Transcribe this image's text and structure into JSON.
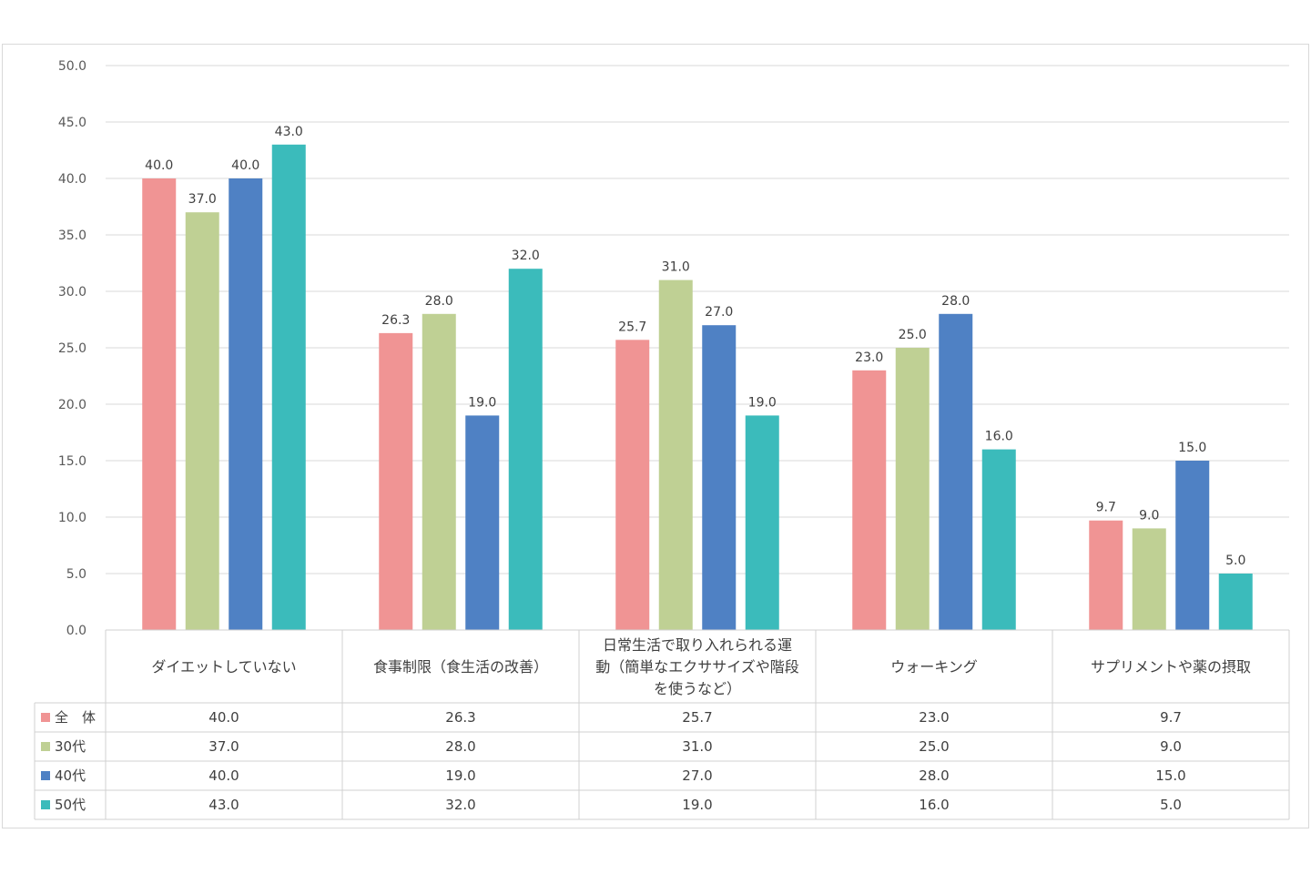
{
  "chart_data": {
    "type": "bar",
    "title": "",
    "xlabel": "",
    "ylabel": "",
    "ylim": [
      0,
      50
    ],
    "yticks": [
      "0.0",
      "5.0",
      "10.0",
      "15.0",
      "20.0",
      "25.0",
      "30.0",
      "35.0",
      "40.0",
      "45.0",
      "50.0"
    ],
    "grid": true,
    "legend": "data-table",
    "categories": [
      [
        "ダイエットしていない"
      ],
      [
        "食事制限（食生活の改善）"
      ],
      [
        "日常生活で取り入れられる運",
        "動（簡単なエクササイズや階段",
        "を使うなど）"
      ],
      [
        "ウォーキング"
      ],
      [
        "サプリメントや薬の摂取"
      ]
    ],
    "series": [
      {
        "name": "全　体",
        "color": "#f09494",
        "values": [
          40.0,
          26.3,
          25.7,
          23.0,
          9.7
        ],
        "labels": [
          "40.0",
          "26.3",
          "25.7",
          "23.0",
          "9.7"
        ]
      },
      {
        "name": "30代",
        "color": "#bfd094",
        "values": [
          37.0,
          28.0,
          31.0,
          25.0,
          9.0
        ],
        "labels": [
          "37.0",
          "28.0",
          "31.0",
          "25.0",
          "9.0"
        ]
      },
      {
        "name": "40代",
        "color": "#4f81c4",
        "values": [
          40.0,
          19.0,
          27.0,
          28.0,
          15.0
        ],
        "labels": [
          "40.0",
          "19.0",
          "27.0",
          "28.0",
          "15.0"
        ]
      },
      {
        "name": "50代",
        "color": "#3bbbbb",
        "values": [
          43.0,
          32.0,
          19.0,
          16.0,
          5.0
        ],
        "labels": [
          "43.0",
          "32.0",
          "19.0",
          "16.0",
          "5.0"
        ]
      }
    ]
  }
}
